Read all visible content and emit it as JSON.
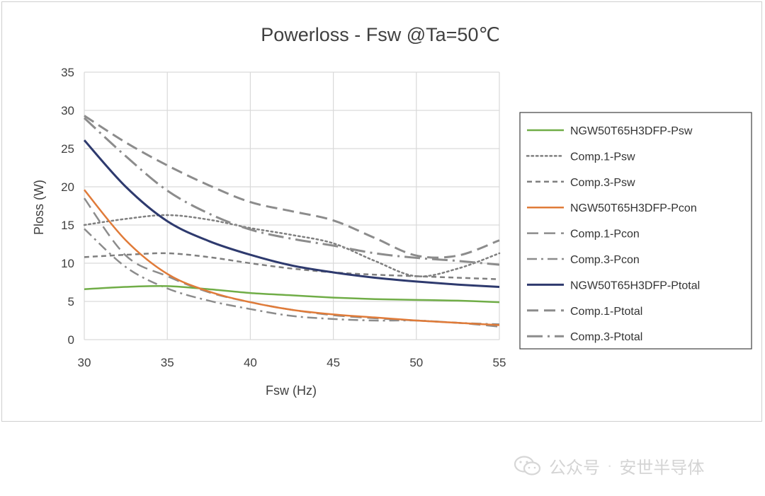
{
  "chart_data": {
    "type": "line",
    "title": "Powerloss - Fsw @Ta=50℃",
    "xlabel": "Fsw (Hz)",
    "ylabel": "Ploss (W)",
    "xlim": [
      30,
      55
    ],
    "ylim": [
      0,
      35
    ],
    "xticks": [
      30,
      35,
      40,
      45,
      50,
      55
    ],
    "yticks": [
      0,
      5,
      10,
      15,
      20,
      25,
      30,
      35
    ],
    "grid": true,
    "legend": "right",
    "series": [
      {
        "name": "NGW50T65H3DFP-Psw",
        "color": "#70ad47",
        "style": "solid",
        "width": 2.5,
        "x": [
          30,
          32.5,
          35,
          37.5,
          40,
          42.5,
          45,
          47.5,
          50,
          52.5,
          55
        ],
        "y": [
          6.6,
          6.9,
          7.0,
          6.6,
          6.1,
          5.8,
          5.5,
          5.3,
          5.2,
          5.1,
          4.9
        ]
      },
      {
        "name": "Comp.1-Psw",
        "color": "#7f7f7f",
        "style": "dot",
        "width": 2.5,
        "x": [
          30,
          32.5,
          35,
          37.5,
          40,
          42.5,
          45,
          47.5,
          50,
          52.5,
          55
        ],
        "y": [
          15.0,
          15.8,
          16.3,
          15.7,
          14.6,
          13.7,
          12.6,
          10.3,
          8.3,
          9.3,
          11.3
        ]
      },
      {
        "name": "Comp.3-Psw",
        "color": "#7f7f7f",
        "style": "dash",
        "width": 2.5,
        "x": [
          30,
          32.5,
          35,
          37.5,
          40,
          42.5,
          45,
          47.5,
          50,
          52.5,
          55
        ],
        "y": [
          10.8,
          11.1,
          11.3,
          10.8,
          10.0,
          9.3,
          8.8,
          8.5,
          8.3,
          8.1,
          7.9
        ]
      },
      {
        "name": "NGW50T65H3DFP-Pcon",
        "color": "#e07b39",
        "style": "solid",
        "width": 2.5,
        "x": [
          30,
          32.5,
          35,
          37.5,
          40,
          42.5,
          45,
          47.5,
          50,
          52.5,
          55
        ],
        "y": [
          19.6,
          13.0,
          8.6,
          6.3,
          4.9,
          3.9,
          3.3,
          2.9,
          2.5,
          2.2,
          1.9
        ]
      },
      {
        "name": "Comp.1-Pcon",
        "color": "#8c8c8c",
        "style": "longdash",
        "width": 2.5,
        "x": [
          30,
          32.5,
          35,
          37.5,
          40,
          42.5,
          45,
          47.5,
          50,
          52.5,
          55
        ],
        "y": [
          18.5,
          11.0,
          8.3,
          6.2,
          4.9,
          3.9,
          3.2,
          2.8,
          2.5,
          2.2,
          1.7
        ]
      },
      {
        "name": "Comp.3-Pcon",
        "color": "#8c8c8c",
        "style": "dashdot",
        "width": 2.5,
        "x": [
          30,
          32.5,
          35,
          37.5,
          40,
          42.5,
          45,
          47.5,
          50,
          52.5,
          55
        ],
        "y": [
          14.5,
          9.5,
          6.7,
          5.1,
          4.0,
          3.1,
          2.7,
          2.5,
          2.5,
          2.2,
          2.0
        ]
      },
      {
        "name": "NGW50T65H3DFP-Ptotal",
        "color": "#2e3a6e",
        "style": "solid",
        "width": 3,
        "x": [
          30,
          32.5,
          35,
          37.5,
          40,
          42.5,
          45,
          47.5,
          50,
          52.5,
          55
        ],
        "y": [
          26.1,
          20.0,
          15.5,
          12.9,
          11.1,
          9.7,
          8.8,
          8.1,
          7.6,
          7.2,
          6.9
        ]
      },
      {
        "name": "Comp.1-Ptotal",
        "color": "#8c8c8c",
        "style": "longdash",
        "width": 3,
        "x": [
          30,
          32.5,
          35,
          37.5,
          40,
          42.5,
          45,
          47.5,
          50,
          52.5,
          55
        ],
        "y": [
          29.3,
          25.8,
          22.8,
          20.2,
          18.0,
          16.8,
          15.6,
          13.3,
          11.0,
          11.0,
          13.0
        ]
      },
      {
        "name": "Comp.3-Ptotal",
        "color": "#8c8c8c",
        "style": "dashdotlong",
        "width": 3,
        "x": [
          30,
          32.5,
          35,
          37.5,
          40,
          42.5,
          45,
          47.5,
          50,
          52.5,
          55
        ],
        "y": [
          29.0,
          24.0,
          19.5,
          16.5,
          14.4,
          13.2,
          12.3,
          11.3,
          10.7,
          10.3,
          9.8
        ]
      }
    ]
  },
  "watermark": {
    "account_label": "公众号",
    "separator": "·",
    "name": "安世半导体"
  }
}
